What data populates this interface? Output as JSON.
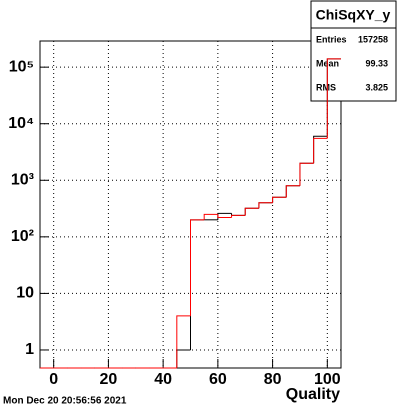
{
  "chart_data": {
    "type": "histogram",
    "x_label": "Quality",
    "date": "Mon Dec 20 20:56:56 2021",
    "bins": [
      -5,
      0,
      5,
      10,
      15,
      20,
      25,
      30,
      35,
      40,
      45,
      50,
      55,
      60,
      65,
      70,
      75,
      80,
      85,
      90,
      95,
      100,
      105
    ],
    "series": [
      {
        "color": "#000000",
        "values": [
          0,
          0,
          0,
          0,
          0,
          0,
          0,
          0,
          0,
          0,
          1,
          200,
          200,
          260,
          240,
          320,
          400,
          500,
          800,
          2000,
          6000,
          140000
        ]
      },
      {
        "color": "#ff0000",
        "values": [
          0,
          0,
          0,
          0,
          0,
          0,
          0,
          0,
          0,
          0,
          4,
          200,
          250,
          220,
          240,
          320,
          400,
          500,
          800,
          2000,
          5500,
          140000
        ]
      }
    ],
    "xlim": [
      -5,
      105
    ],
    "xticks": [
      0,
      20,
      40,
      60,
      80,
      100
    ],
    "ylim": [
      0.48,
      290000
    ],
    "log_y": true,
    "yticks": [
      1,
      10,
      {
        "value": 100,
        "label": "10²"
      },
      {
        "value": 1000,
        "label": "10³"
      },
      {
        "value": 10000,
        "label": "10⁴"
      },
      {
        "value": 100000,
        "label": "10⁵"
      }
    ],
    "grid": true,
    "stats": {
      "title": "ChiSqXY_y",
      "rows": [
        {
          "label": "Entries",
          "value": 157258
        },
        {
          "label": "Mean",
          "value": 99.33
        },
        {
          "label": "RMS",
          "value": 3.825
        }
      ]
    }
  }
}
